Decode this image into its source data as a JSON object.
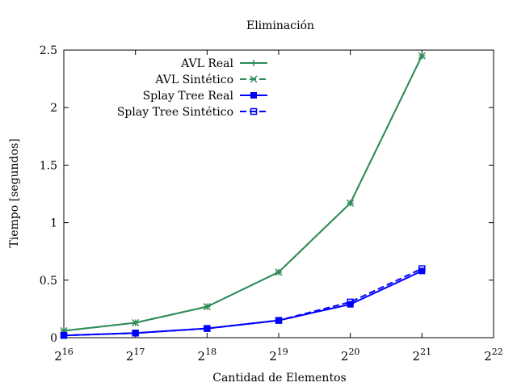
{
  "chart_data": {
    "type": "line",
    "title": "Eliminación",
    "xlabel": "Cantidad de Elementos",
    "ylabel": "Tiempo [segundos]",
    "x_scale": "log2",
    "xlim": [
      65536,
      4194304
    ],
    "ylim": [
      0,
      2.5
    ],
    "x_ticks": [
      {
        "base": "2",
        "exp": "16",
        "value": 65536
      },
      {
        "base": "2",
        "exp": "17",
        "value": 131072
      },
      {
        "base": "2",
        "exp": "18",
        "value": 262144
      },
      {
        "base": "2",
        "exp": "19",
        "value": 524288
      },
      {
        "base": "2",
        "exp": "20",
        "value": 1048576
      },
      {
        "base": "2",
        "exp": "21",
        "value": 2097152
      },
      {
        "base": "2",
        "exp": "22",
        "value": 4194304
      }
    ],
    "y_ticks": [
      {
        "label": "0",
        "value": 0
      },
      {
        "label": "0.5",
        "value": 0.5
      },
      {
        "label": "1",
        "value": 1
      },
      {
        "label": "1.5",
        "value": 1.5
      },
      {
        "label": "2",
        "value": 2
      },
      {
        "label": "2.5",
        "value": 2.5
      }
    ],
    "grid": false,
    "legend_position": "top-left",
    "x": [
      65536,
      131072,
      262144,
      524288,
      1048576,
      2097152
    ],
    "series": [
      {
        "name": "AVL Real",
        "values": [
          0.06,
          0.13,
          0.27,
          0.57,
          1.17,
          2.45
        ],
        "color": "#2e8b57",
        "dash": "solid",
        "marker": "plus"
      },
      {
        "name": "AVL Sintético",
        "values": [
          0.06,
          0.13,
          0.27,
          0.57,
          1.17,
          2.45
        ],
        "color": "#2e8b57",
        "dash": "dashed",
        "marker": "cross"
      },
      {
        "name": "Splay Tree Real",
        "values": [
          0.02,
          0.04,
          0.08,
          0.15,
          0.29,
          0.58
        ],
        "color": "#0000ff",
        "dash": "solid",
        "marker": "filled-square"
      },
      {
        "name": "Splay Tree Sintético",
        "values": [
          0.02,
          0.04,
          0.08,
          0.15,
          0.31,
          0.6
        ],
        "color": "#0000ff",
        "dash": "dashed",
        "marker": "open-square"
      }
    ]
  }
}
